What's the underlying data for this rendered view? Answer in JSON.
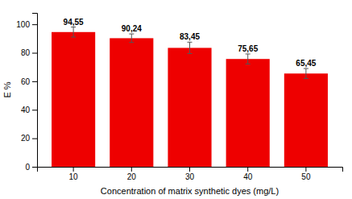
{
  "chart_data": {
    "type": "bar",
    "categories": [
      "10",
      "20",
      "30",
      "40",
      "50"
    ],
    "values": [
      94.55,
      90.24,
      83.45,
      75.65,
      65.45
    ],
    "value_labels": [
      "94,55",
      "90,24",
      "83,45",
      "75,65",
      "65,45"
    ],
    "errors": [
      3.5,
      3.0,
      4.0,
      3.5,
      3.5
    ],
    "data_labels": true,
    "color": "#EE0000",
    "xlabel": "Concentration of matrix synthetic dyes (mg/L)",
    "ylabel": "E %",
    "ylim": [
      0,
      108
    ],
    "yticks": [
      0,
      20,
      40,
      60,
      80,
      100
    ]
  }
}
